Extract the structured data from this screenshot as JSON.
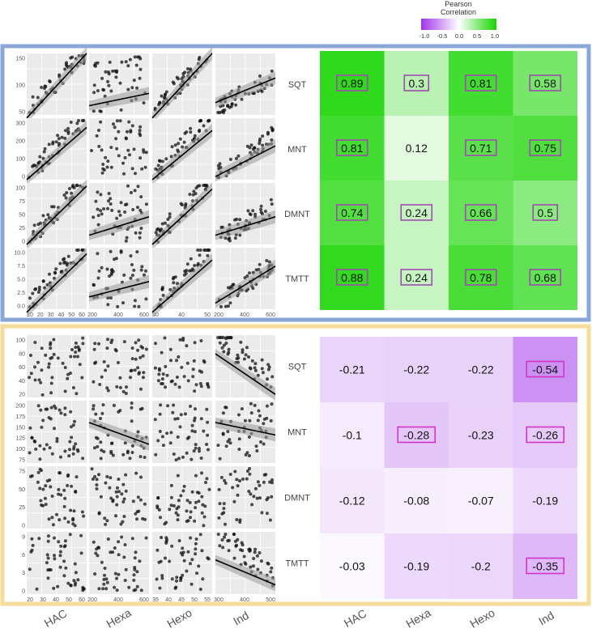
{
  "legend": {
    "title_line1": "Pearson",
    "title_line2": "Correlation",
    "ticks": [
      "-1.0",
      "-0.5",
      "0.0",
      "0.5",
      "1.0"
    ],
    "neg_color": "#c566f0",
    "pos_color": "#3ddc23"
  },
  "chart_data": [
    {
      "type": "scatter",
      "panel": "top",
      "columns": [
        "HAC",
        "Hexa",
        "Hexo",
        "Ind"
      ],
      "rows": [
        "SQT",
        "MNT",
        "DMNT",
        "TMTT"
      ],
      "x_ticks": [
        [
          "10",
          "20",
          "30",
          "40",
          "50",
          "60"
        ],
        [
          "200",
          "400",
          "600"
        ],
        [
          "30",
          "40",
          "50"
        ],
        [
          "200",
          "400",
          "600"
        ]
      ],
      "y_ticks": [
        [
          "50",
          "100",
          "150"
        ],
        [
          "0",
          "100",
          "200",
          "300"
        ],
        [
          "0",
          "25",
          "50",
          "75",
          "100"
        ],
        [
          "0.0",
          "2.5",
          "5.0",
          "7.5",
          "10.0"
        ]
      ],
      "grid": true
    },
    {
      "type": "heatmap",
      "panel": "top",
      "columns": [
        "HAC",
        "Hexa",
        "Hexo",
        "Ind"
      ],
      "rows": [
        "SQT",
        "MNT",
        "DMNT",
        "TMTT"
      ],
      "values": [
        [
          0.89,
          0.3,
          0.81,
          0.58
        ],
        [
          0.81,
          0.12,
          0.71,
          0.75
        ],
        [
          0.74,
          0.24,
          0.66,
          0.5
        ],
        [
          0.88,
          0.24,
          0.78,
          0.68
        ]
      ],
      "boxed": [
        [
          true,
          true,
          true,
          true
        ],
        [
          true,
          false,
          true,
          true
        ],
        [
          true,
          true,
          true,
          true
        ],
        [
          true,
          true,
          true,
          true
        ]
      ]
    },
    {
      "type": "scatter",
      "panel": "bottom",
      "columns": [
        "HAC",
        "Hexa",
        "Hexo",
        "Ind"
      ],
      "rows": [
        "SQT",
        "MNT",
        "DMNT",
        "TMTT"
      ],
      "x_ticks": [
        [
          "20",
          "30",
          "40",
          "50",
          "60"
        ],
        [
          "200",
          "400",
          "600"
        ],
        [
          "35",
          "40",
          "45",
          "50",
          "55"
        ],
        [
          "300",
          "400",
          "500"
        ]
      ],
      "y_ticks": [
        [
          "20",
          "40",
          "60",
          "80",
          "100"
        ],
        [
          "75",
          "100",
          "125",
          "150",
          "175",
          "200"
        ],
        [
          "0",
          "25",
          "50",
          "75"
        ],
        [
          "0",
          "3",
          "6",
          "9"
        ]
      ],
      "grid": true
    },
    {
      "type": "heatmap",
      "panel": "bottom",
      "columns": [
        "HAC",
        "Hexa",
        "Hexo",
        "Ind"
      ],
      "rows": [
        "SQT",
        "MNT",
        "DMNT",
        "TMTT"
      ],
      "values": [
        [
          -0.21,
          -0.22,
          -0.22,
          -0.54
        ],
        [
          -0.1,
          -0.28,
          -0.23,
          -0.26
        ],
        [
          -0.12,
          -0.08,
          -0.07,
          -0.19
        ],
        [
          -0.03,
          -0.19,
          -0.2,
          -0.35
        ]
      ],
      "boxed": [
        [
          false,
          false,
          false,
          true
        ],
        [
          false,
          true,
          false,
          true
        ],
        [
          false,
          false,
          false,
          false
        ],
        [
          false,
          false,
          false,
          true
        ]
      ]
    }
  ],
  "bottom_axis_labels": [
    "HAC",
    "Hexa",
    "Hexo",
    "Ind",
    "HAC",
    "Hexa",
    "Hexo",
    "Ind"
  ]
}
